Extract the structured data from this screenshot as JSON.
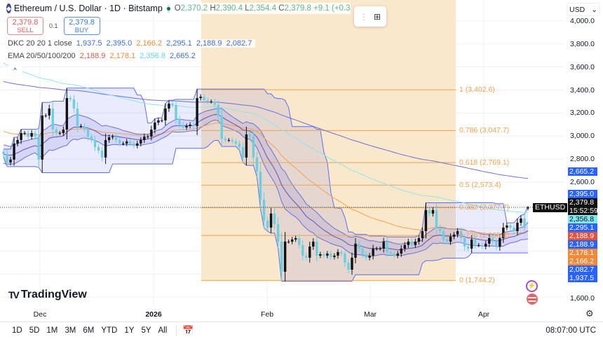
{
  "header": {
    "symbol_title": "Ethereum / U.S. Dollar · 1D · Bitstamp",
    "icon": "ethereum-icon",
    "ohlc": {
      "o_label": "O",
      "o": "2,370.2",
      "h_label": "H",
      "h": "2,390.4",
      "l_label": "L",
      "l": "2,354.4",
      "c_label": "C",
      "c": "2,379.8",
      "change": "+9.1 (+0.3"
    }
  },
  "trade": {
    "sell_price": "2,379.8",
    "sell_label": "SELL",
    "qty": "0.1",
    "buy_price": "2,379.8",
    "buy_label": "BUY"
  },
  "indicators": {
    "dkc": {
      "name": "DKC 20 20 1 close",
      "values": [
        "1,937.5",
        "2,395.0",
        "2,166.2",
        "2,295.1",
        "2,188.9",
        "2,082.7"
      ],
      "colors": [
        "#3b6fe0",
        "#3b6fe0",
        "#f08a3a",
        "#3b6fe0",
        "#3b6fe0",
        "#3b6fe0"
      ]
    },
    "ema": {
      "name": "EMA 20/50/100/200",
      "values": [
        "2,188.9",
        "2,178.1",
        "2,356.8",
        "2,665.2"
      ],
      "colors": [
        "#e05a4a",
        "#f08a3a",
        "#6fe3f0",
        "#3b6fe0"
      ]
    }
  },
  "currency": "USD",
  "price_axis": [
    4000,
    3800,
    3600,
    3400,
    3200,
    3000,
    2800,
    2600,
    1600
  ],
  "price_axis_labels": [
    "4,000.0",
    "3,800.0",
    "3,600.0",
    "3,400.0",
    "3,200.0",
    "3,000.0",
    "2,800.0",
    "2,600.0",
    "1,600.0"
  ],
  "price_tags": [
    {
      "value": "2,665.2",
      "color": "#2962ff"
    },
    {
      "value": "2,395.0",
      "color": "#2962ff"
    },
    {
      "value": "2,379.8",
      "sub": "15:52:59",
      "color": "#111111"
    },
    {
      "value": "2,356.8",
      "color": "#7fe8f0",
      "text": "#111"
    },
    {
      "value": "2,295.1",
      "color": "#2962ff"
    },
    {
      "value": "2,188.9",
      "color": "#e0533e"
    },
    {
      "value": "2,188.9",
      "color": "#2962ff"
    },
    {
      "value": "2,178.1",
      "color": "#f08a3a"
    },
    {
      "value": "2,166.2",
      "color": "#f08a3a"
    },
    {
      "value": "2,082.7",
      "color": "#2962ff"
    },
    {
      "value": "1,937.5",
      "color": "#2962ff"
    }
  ],
  "symbol_tag": "ETHUSD",
  "fib": [
    {
      "level": "1",
      "price": 3402.6,
      "label": "1 (3,402.6)"
    },
    {
      "level": "0.786",
      "price": 3047.7,
      "label": "0.786 (3,047.7)"
    },
    {
      "level": "0.618",
      "price": 2769.1,
      "label": "0.618 (2,769.1)"
    },
    {
      "level": "0.5",
      "price": 2573.4,
      "label": "0.5 (2,573.4)"
    },
    {
      "level": "0.382",
      "price": 2377.7,
      "label": "0.382 (2,377.7)"
    },
    {
      "level": "0.236",
      "price": 2135.8,
      "label": "0.236 (2,135.8)"
    },
    {
      "level": "0",
      "price": 1744.2,
      "label": "0 (1,744.2)"
    }
  ],
  "time_axis": [
    {
      "label": "Dec",
      "bold": false
    },
    {
      "label": "2026",
      "bold": true
    },
    {
      "label": "Feb",
      "bold": false
    },
    {
      "label": "Mar",
      "bold": false
    },
    {
      "label": "Apr",
      "bold": false
    }
  ],
  "brand": "TradingView",
  "ranges": [
    "1D",
    "5D",
    "1M",
    "3M",
    "6M",
    "YTD",
    "1Y",
    "5Y",
    "All"
  ],
  "clock": "08:07:00 UTC",
  "colors": {
    "up": "#111111",
    "down": "#6ccfe0",
    "fib": "#f0a24f",
    "fib_zone": "#fae8cc",
    "ema20": "#6b4fb0",
    "ema50": "#f0a24f",
    "ema100": "#8fe6e6",
    "ema200": "#6c6fd8"
  },
  "chart_data": {
    "type": "candlestick",
    "interval": "1D",
    "closes": [
      2843,
      2770,
      2795,
      2935,
      2965,
      3026,
      3026,
      2995,
      3026,
      2995,
      2795,
      3178,
      3178,
      3239,
      3056,
      3026,
      3026,
      3056,
      3330,
      3318,
      3239,
      3087,
      3087,
      3056,
      2995,
      2965,
      2904,
      2874,
      2813,
      2965,
      2989,
      2995,
      2965,
      2935,
      2935,
      2953,
      2935,
      2916,
      2935,
      2965,
      2995,
      2995,
      3056,
      3117,
      3136,
      3136,
      3239,
      3282,
      3270,
      3148,
      3099,
      3075,
      3087,
      3099,
      3087,
      3330,
      3342,
      3312,
      3300,
      3300,
      3270,
      3178,
      2977,
      2965,
      2965,
      2953,
      2935,
      2904,
      2813,
      3014,
      2995,
      2813,
      2691,
      2447,
      2265,
      2204,
      2326,
      2234,
      2082,
      1820,
      2082,
      2082,
      2100,
      2112,
      2052,
      1960,
      1942,
      2039,
      2082,
      1960,
      1972,
      1960,
      1978,
      1948,
      1960,
      1991,
      1978,
      1899,
      1838,
      1942,
      2064,
      2021,
      1972,
      1942,
      1960,
      2021,
      2021,
      2021,
      2082,
      1991,
      1978,
      1960,
      1978,
      2021,
      2052,
      2082,
      2052,
      2082,
      2112,
      2173,
      2356,
      2326,
      2356,
      2204,
      2173,
      2100,
      2082,
      2125,
      2143,
      2173,
      2112,
      2039,
      2021,
      2100,
      2052,
      2052,
      2039,
      2064,
      2112,
      2082,
      2039,
      2112,
      2204,
      2222,
      2204,
      2173,
      2246,
      2283,
      2204,
      2379.8
    ],
    "last": {
      "open": 2370.2,
      "high": 2390.4,
      "low": 2354.4,
      "close": 2379.8
    },
    "ylim": [
      1560,
      4170
    ]
  }
}
